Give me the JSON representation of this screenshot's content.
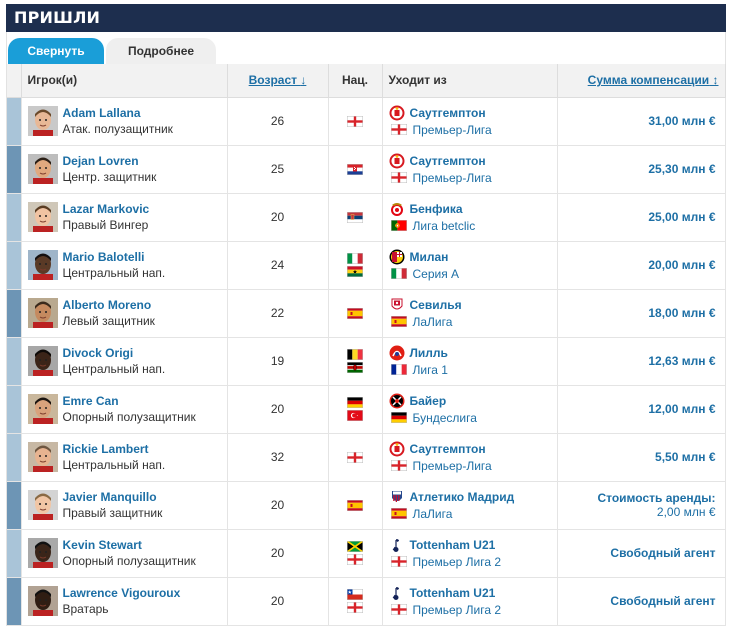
{
  "header": {
    "title": "ПРИШЛИ"
  },
  "tabs": [
    {
      "label": "Свернуть",
      "active": true
    },
    {
      "label": "Подробнее",
      "active": false
    }
  ],
  "columns": {
    "player": "Игрок(и)",
    "age": "Возраст",
    "nat": "Нац.",
    "from": "Уходит из",
    "fee": "Сумма компенсации"
  },
  "rows": [
    {
      "name": "Adam Lallana",
      "position": "Атак. полузащитник",
      "age": "26",
      "nations": [
        "eng"
      ],
      "club": "Саутгемптон",
      "club_icon": "southampton-crest",
      "league": "Премьер-Лига",
      "league_flag": "eng",
      "fee": "31,00 млн €",
      "fee_sub": ""
    },
    {
      "name": "Dejan Lovren",
      "position": "Центр. защитник",
      "age": "25",
      "nations": [
        "hr"
      ],
      "club": "Саутгемптон",
      "club_icon": "southampton-crest",
      "league": "Премьер-Лига",
      "league_flag": "eng",
      "fee": "25,30 млн €",
      "fee_sub": ""
    },
    {
      "name": "Lazar Markovic",
      "position": "Правый Вингер",
      "age": "20",
      "nations": [
        "rs"
      ],
      "club": "Бенфика",
      "club_icon": "benfica-crest",
      "league": "Лига betclic",
      "league_flag": "pt",
      "fee": "25,00 млн €",
      "fee_sub": ""
    },
    {
      "name": "Mario Balotelli",
      "position": "Центральный нап.",
      "age": "24",
      "nations": [
        "it",
        "gh"
      ],
      "club": "Милан",
      "club_icon": "milan-crest",
      "league": "Серия А",
      "league_flag": "it",
      "fee": "20,00 млн €",
      "fee_sub": ""
    },
    {
      "name": "Alberto Moreno",
      "position": "Левый защитник",
      "age": "22",
      "nations": [
        "es"
      ],
      "club": "Севилья",
      "club_icon": "sevilla-crest",
      "league": "ЛаЛига",
      "league_flag": "es",
      "fee": "18,00 млн €",
      "fee_sub": ""
    },
    {
      "name": "Divock Origi",
      "position": "Центральный нап.",
      "age": "19",
      "nations": [
        "be",
        "ke"
      ],
      "club": "Лилль",
      "club_icon": "lille-crest",
      "league": "Лига 1",
      "league_flag": "fr",
      "fee": "12,63 млн €",
      "fee_sub": ""
    },
    {
      "name": "Emre Can",
      "position": "Опорный полузащитник",
      "age": "20",
      "nations": [
        "de",
        "tr"
      ],
      "club": "Байер",
      "club_icon": "leverkusen-crest",
      "league": "Бундеслига",
      "league_flag": "de",
      "fee": "12,00 млн €",
      "fee_sub": ""
    },
    {
      "name": "Rickie Lambert",
      "position": "Центральный нап.",
      "age": "32",
      "nations": [
        "eng"
      ],
      "club": "Саутгемптон",
      "club_icon": "southampton-crest",
      "league": "Премьер-Лига",
      "league_flag": "eng",
      "fee": "5,50 млн €",
      "fee_sub": ""
    },
    {
      "name": "Javier Manquillo",
      "position": "Правый защитник",
      "age": "20",
      "nations": [
        "es"
      ],
      "club": "Атлетико Мадрид",
      "club_icon": "atletico-crest",
      "league": "ЛаЛига",
      "league_flag": "es",
      "fee": "Стоимость аренды:",
      "fee_sub": "2,00 млн €"
    },
    {
      "name": "Kevin Stewart",
      "position": "Опорный полузащитник",
      "age": "20",
      "nations": [
        "jm",
        "eng"
      ],
      "club": "Tottenham U21",
      "club_icon": "tottenham-crest",
      "league": "Премьер Лига 2",
      "league_flag": "eng",
      "fee": "Свободный агент",
      "fee_sub": ""
    },
    {
      "name": "Lawrence Vigouroux",
      "position": "Вратарь",
      "age": "20",
      "nations": [
        "cl",
        "eng"
      ],
      "club": "Tottenham U21",
      "club_icon": "tottenham-crest",
      "league": "Премьер Лига 2",
      "league_flag": "eng",
      "fee": "Свободный агент",
      "fee_sub": ""
    }
  ]
}
